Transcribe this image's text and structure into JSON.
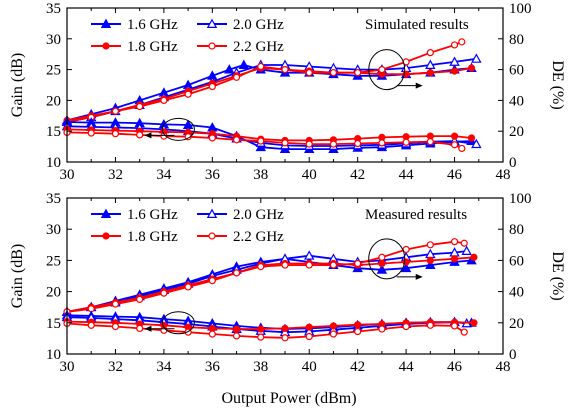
{
  "figure": {
    "xlabel": "Output Power (dBm)"
  },
  "chart_data": [
    {
      "type": "line",
      "annotation": "Simulated results",
      "ylabel_left": "Gain (dB)",
      "ylabel_right": "DE (%)",
      "xlim": [
        30,
        48
      ],
      "ylim_left": [
        10,
        35
      ],
      "ylim_right": [
        0,
        100
      ],
      "xticks": [
        30,
        32,
        34,
        36,
        38,
        40,
        42,
        44,
        46,
        48
      ],
      "yticks_left": [
        10,
        15,
        20,
        25,
        30,
        35
      ],
      "yticks_right": [
        0,
        20,
        40,
        60,
        80,
        100
      ],
      "series": [
        {
          "name": "1.6 GHz",
          "color": "#0000ff",
          "marker": "filled-triangle",
          "axis": "right",
          "kind": "DE",
          "x": [
            30,
            31,
            32,
            33,
            34,
            35,
            36,
            36.7,
            37.3,
            38,
            39,
            40,
            41,
            42,
            43,
            44,
            45,
            46,
            46.7
          ],
          "y": [
            27,
            31,
            35,
            40,
            45,
            50,
            56,
            60,
            63,
            60,
            58,
            58,
            57,
            56,
            56,
            57,
            58,
            60,
            61
          ]
        },
        {
          "name": "2.0 GHz",
          "color": "#0000ff",
          "marker": "open-triangle",
          "axis": "right",
          "kind": "DE",
          "x": [
            30,
            31,
            32,
            33,
            34,
            35,
            36,
            37,
            38,
            39,
            40,
            41,
            42,
            43,
            44,
            45,
            46,
            46.9
          ],
          "y": [
            26,
            29,
            33,
            37,
            42,
            47,
            52,
            58,
            63,
            63,
            62,
            61,
            60,
            60,
            61,
            63,
            65,
            67
          ]
        },
        {
          "name": "1.8 GHz",
          "color": "#ff0000",
          "marker": "filled-circle",
          "axis": "right",
          "kind": "DE",
          "x": [
            30,
            31,
            32,
            33,
            34,
            35,
            36,
            37,
            38,
            39,
            40,
            41,
            42,
            43,
            44,
            45,
            46,
            46.7
          ],
          "y": [
            27,
            30,
            33,
            37,
            41,
            46,
            51,
            56,
            61,
            60,
            59,
            58,
            58,
            57,
            57,
            58,
            59,
            61
          ]
        },
        {
          "name": "2.2 GHz",
          "color": "#ff0000",
          "marker": "open-circle",
          "axis": "right",
          "kind": "DE",
          "x": [
            30,
            31,
            32,
            33,
            34,
            35,
            36,
            37,
            38,
            39,
            40,
            41,
            42,
            43,
            44,
            45,
            46,
            46.3
          ],
          "y": [
            26,
            29,
            33,
            36,
            40,
            44,
            49,
            55,
            62,
            60,
            58,
            58,
            58,
            60,
            65,
            71,
            76,
            78
          ]
        },
        {
          "name": "1.6 GHz",
          "color": "#0000ff",
          "marker": "filled-triangle",
          "axis": "left",
          "kind": "Gain",
          "x": [
            30,
            31,
            32,
            33,
            34,
            35,
            36,
            37,
            38,
            39,
            40,
            41,
            42,
            43,
            44,
            45,
            46,
            46.7
          ],
          "y": [
            16.5,
            16.4,
            16.4,
            16.3,
            16.1,
            16.0,
            15.6,
            14.2,
            12.4,
            12.1,
            12.1,
            12.1,
            12.3,
            12.4,
            12.7,
            13.0,
            13.3,
            13.4
          ]
        },
        {
          "name": "2.0 GHz",
          "color": "#0000ff",
          "marker": "open-triangle",
          "axis": "left",
          "kind": "Gain",
          "x": [
            30,
            31,
            32,
            33,
            34,
            35,
            36,
            37,
            38,
            39,
            40,
            41,
            42,
            43,
            44,
            45,
            46,
            46.9
          ],
          "y": [
            15.8,
            15.7,
            15.6,
            15.5,
            15.3,
            15.0,
            14.6,
            13.8,
            13.1,
            12.7,
            12.6,
            12.6,
            12.7,
            12.8,
            13.0,
            13.3,
            13.4,
            12.9
          ]
        },
        {
          "name": "1.8 GHz",
          "color": "#ff0000",
          "marker": "filled-circle",
          "axis": "left",
          "kind": "Gain",
          "x": [
            30,
            31,
            32,
            33,
            34,
            35,
            36,
            37,
            38,
            39,
            40,
            41,
            42,
            43,
            44,
            45,
            46,
            46.7
          ],
          "y": [
            15.3,
            15.2,
            15.1,
            15.0,
            14.9,
            14.8,
            14.6,
            14.2,
            13.7,
            13.5,
            13.5,
            13.6,
            13.8,
            14.0,
            14.1,
            14.2,
            14.2,
            13.9
          ]
        },
        {
          "name": "2.2 GHz",
          "color": "#ff0000",
          "marker": "open-circle",
          "axis": "left",
          "kind": "Gain",
          "x": [
            30,
            31,
            32,
            33,
            34,
            35,
            36,
            37,
            38,
            39,
            40,
            41,
            42,
            43,
            44,
            45,
            46,
            46.3
          ],
          "y": [
            14.8,
            14.7,
            14.6,
            14.4,
            14.2,
            14.1,
            13.9,
            13.6,
            13.4,
            13.1,
            12.9,
            12.9,
            13.0,
            13.1,
            13.2,
            13.3,
            12.8,
            12.2
          ]
        }
      ]
    },
    {
      "type": "line",
      "annotation": "Measured results",
      "ylabel_left": "Gain (dB)",
      "ylabel_right": "DE (%)",
      "xlim": [
        30,
        48
      ],
      "ylim_left": [
        10,
        35
      ],
      "ylim_right": [
        0,
        100
      ],
      "xticks": [
        30,
        32,
        34,
        36,
        38,
        40,
        42,
        44,
        46,
        48
      ],
      "yticks_left": [
        10,
        15,
        20,
        25,
        30,
        35
      ],
      "yticks_right": [
        0,
        20,
        40,
        60,
        80,
        100
      ],
      "series": [
        {
          "name": "1.6 GHz",
          "color": "#0000ff",
          "marker": "filled-triangle",
          "axis": "right",
          "kind": "DE",
          "x": [
            30,
            31,
            32,
            33,
            34,
            35,
            36,
            37,
            38,
            39,
            40,
            41,
            42,
            43,
            44,
            45,
            46,
            46.7
          ],
          "y": [
            27,
            30,
            34,
            38,
            42,
            46,
            51,
            56,
            59,
            61,
            59,
            57,
            55,
            54,
            55,
            57,
            59,
            60
          ]
        },
        {
          "name": "2.0 GHz",
          "color": "#0000ff",
          "marker": "open-triangle",
          "axis": "right",
          "kind": "DE",
          "x": [
            30,
            31,
            32,
            33,
            34,
            35,
            36,
            37,
            38,
            39,
            40,
            41,
            42,
            43,
            44,
            45,
            46,
            46.5
          ],
          "y": [
            27,
            30,
            33,
            37,
            41,
            45,
            50,
            54,
            58,
            61,
            63,
            61,
            59,
            60,
            62,
            64,
            65,
            66
          ]
        },
        {
          "name": "1.8 GHz",
          "color": "#ff0000",
          "marker": "filled-circle",
          "axis": "right",
          "kind": "DE",
          "x": [
            30,
            31,
            32,
            33,
            34,
            35,
            36,
            37,
            38,
            39,
            40,
            41,
            42,
            43,
            44,
            45,
            46,
            46.8
          ],
          "y": [
            27,
            30,
            33,
            36,
            40,
            44,
            48,
            52,
            57,
            58,
            58,
            58,
            57,
            58,
            59,
            60,
            61,
            62
          ]
        },
        {
          "name": "2.2 GHz",
          "color": "#ff0000",
          "marker": "open-circle",
          "axis": "right",
          "kind": "DE",
          "x": [
            30,
            31,
            32,
            33,
            34,
            35,
            36,
            37,
            38,
            39,
            40,
            41,
            42,
            43,
            44,
            45,
            46,
            46.4
          ],
          "y": [
            27,
            29,
            32,
            35,
            39,
            43,
            47,
            52,
            56,
            57,
            57,
            57,
            58,
            62,
            67,
            70,
            72,
            71
          ]
        },
        {
          "name": "1.6 GHz",
          "color": "#0000ff",
          "marker": "filled-triangle",
          "axis": "left",
          "kind": "Gain",
          "x": [
            30,
            31,
            32,
            33,
            34,
            35,
            36,
            37,
            38,
            39,
            40,
            41,
            42,
            43,
            44,
            45,
            46,
            46.7
          ],
          "y": [
            16.2,
            16.1,
            16.0,
            15.9,
            15.6,
            15.3,
            14.9,
            14.5,
            14.2,
            14.0,
            14.1,
            14.3,
            14.6,
            14.8,
            15.0,
            15.1,
            15.1,
            15.0
          ]
        },
        {
          "name": "2.0 GHz",
          "color": "#0000ff",
          "marker": "open-triangle",
          "axis": "left",
          "kind": "Gain",
          "x": [
            30,
            31,
            32,
            33,
            34,
            35,
            36,
            37,
            38,
            39,
            40,
            41,
            42,
            43,
            44,
            45,
            46,
            46.5
          ],
          "y": [
            15.9,
            15.8,
            15.6,
            15.4,
            15.1,
            14.8,
            14.4,
            14.0,
            13.7,
            13.5,
            13.6,
            13.9,
            14.2,
            14.5,
            14.8,
            15.0,
            15.1,
            14.9
          ]
        },
        {
          "name": "1.8 GHz",
          "color": "#ff0000",
          "marker": "filled-circle",
          "axis": "left",
          "kind": "Gain",
          "x": [
            30,
            31,
            32,
            33,
            34,
            35,
            36,
            37,
            38,
            39,
            40,
            41,
            42,
            43,
            44,
            45,
            46,
            46.8
          ],
          "y": [
            15.2,
            15.1,
            15.0,
            14.8,
            14.6,
            14.3,
            14.1,
            14.0,
            14.0,
            14.1,
            14.3,
            14.5,
            14.7,
            14.8,
            15.0,
            15.1,
            15.1,
            15.0
          ]
        },
        {
          "name": "2.2 GHz",
          "color": "#ff0000",
          "marker": "open-circle",
          "axis": "left",
          "kind": "Gain",
          "x": [
            30,
            31,
            32,
            33,
            34,
            35,
            36,
            37,
            38,
            39,
            40,
            41,
            42,
            43,
            44,
            45,
            46,
            46.4
          ],
          "y": [
            14.9,
            14.6,
            14.4,
            14.1,
            13.8,
            13.5,
            13.2,
            12.9,
            12.7,
            12.6,
            12.8,
            13.2,
            13.6,
            14.0,
            14.4,
            14.6,
            14.5,
            13.5
          ]
        }
      ]
    }
  ]
}
